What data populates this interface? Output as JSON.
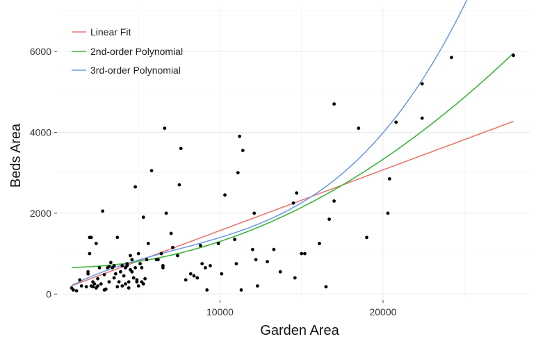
{
  "chart_data": {
    "type": "scatter",
    "title": "",
    "xlabel": "Garden Area",
    "ylabel": "Beds Area",
    "xlim": [
      0,
      29000
    ],
    "ylim": [
      -150,
      7100
    ],
    "x_ticks": [
      {
        "value": 10000,
        "label": "10000"
      },
      {
        "value": 20000,
        "label": "20000"
      }
    ],
    "y_ticks": [
      {
        "value": 0,
        "label": "0"
      },
      {
        "value": 2000,
        "label": "2000"
      },
      {
        "value": 4000,
        "label": "4000"
      },
      {
        "value": 6000,
        "label": "6000"
      }
    ],
    "grid": true,
    "legend_position": "top-left",
    "points": [
      [
        900,
        150
      ],
      [
        1000,
        100
      ],
      [
        1200,
        80
      ],
      [
        1400,
        350
      ],
      [
        1500,
        200
      ],
      [
        1800,
        180
      ],
      [
        1900,
        500
      ],
      [
        1900,
        550
      ],
      [
        2000,
        1000
      ],
      [
        2000,
        1400
      ],
      [
        2100,
        1400
      ],
      [
        2100,
        200
      ],
      [
        2200,
        180
      ],
      [
        2200,
        300
      ],
      [
        2300,
        250
      ],
      [
        2400,
        1250
      ],
      [
        2400,
        150
      ],
      [
        2500,
        380
      ],
      [
        2500,
        200
      ],
      [
        2600,
        650
      ],
      [
        2700,
        250
      ],
      [
        2800,
        2050
      ],
      [
        2900,
        480
      ],
      [
        2900,
        100
      ],
      [
        3000,
        120
      ],
      [
        3100,
        650
      ],
      [
        3200,
        300
      ],
      [
        3200,
        680
      ],
      [
        3300,
        780
      ],
      [
        3400,
        650
      ],
      [
        3500,
        400
      ],
      [
        3500,
        700
      ],
      [
        3600,
        500
      ],
      [
        3700,
        1400
      ],
      [
        3700,
        180
      ],
      [
        3800,
        300
      ],
      [
        3900,
        550
      ],
      [
        4000,
        200
      ],
      [
        4000,
        700
      ],
      [
        4100,
        450
      ],
      [
        4200,
        250
      ],
      [
        4200,
        650
      ],
      [
        4300,
        750
      ],
      [
        4300,
        700
      ],
      [
        4400,
        300
      ],
      [
        4400,
        150
      ],
      [
        4500,
        600
      ],
      [
        4500,
        950
      ],
      [
        4600,
        550
      ],
      [
        4600,
        850
      ],
      [
        4700,
        400
      ],
      [
        4800,
        2650
      ],
      [
        4800,
        650
      ],
      [
        4900,
        350
      ],
      [
        4900,
        300
      ],
      [
        5000,
        200
      ],
      [
        5000,
        1000
      ],
      [
        5100,
        750
      ],
      [
        5200,
        650
      ],
      [
        5200,
        300
      ],
      [
        5300,
        250
      ],
      [
        5300,
        1900
      ],
      [
        5400,
        380
      ],
      [
        5500,
        850
      ],
      [
        5600,
        1250
      ],
      [
        5800,
        3050
      ],
      [
        6100,
        850
      ],
      [
        6200,
        850
      ],
      [
        6400,
        1000
      ],
      [
        6500,
        700
      ],
      [
        6500,
        650
      ],
      [
        6600,
        4100
      ],
      [
        6700,
        2000
      ],
      [
        7000,
        1500
      ],
      [
        7100,
        1150
      ],
      [
        7400,
        950
      ],
      [
        7500,
        2700
      ],
      [
        7600,
        3600
      ],
      [
        7900,
        350
      ],
      [
        8200,
        500
      ],
      [
        8400,
        450
      ],
      [
        8600,
        400
      ],
      [
        8800,
        1200
      ],
      [
        8900,
        750
      ],
      [
        9100,
        650
      ],
      [
        9200,
        100
      ],
      [
        9400,
        700
      ],
      [
        9900,
        1250
      ],
      [
        10100,
        500
      ],
      [
        10300,
        2450
      ],
      [
        10900,
        1350
      ],
      [
        11000,
        750
      ],
      [
        11100,
        3000
      ],
      [
        11200,
        3900
      ],
      [
        11300,
        100
      ],
      [
        11400,
        3550
      ],
      [
        12000,
        1100
      ],
      [
        12100,
        2000
      ],
      [
        12200,
        850
      ],
      [
        12300,
        200
      ],
      [
        12900,
        800
      ],
      [
        13300,
        1100
      ],
      [
        13700,
        550
      ],
      [
        14500,
        2250
      ],
      [
        14600,
        400
      ],
      [
        14700,
        2500
      ],
      [
        15000,
        1000
      ],
      [
        15200,
        1000
      ],
      [
        16100,
        1250
      ],
      [
        16500,
        180
      ],
      [
        16700,
        1850
      ],
      [
        17000,
        4700
      ],
      [
        17000,
        2300
      ],
      [
        18500,
        4100
      ],
      [
        19000,
        1400
      ],
      [
        20300,
        2000
      ],
      [
        20400,
        2850
      ],
      [
        20800,
        4250
      ],
      [
        22400,
        5200
      ],
      [
        22400,
        4350
      ],
      [
        24200,
        5850
      ],
      [
        28000,
        5900
      ]
    ],
    "series": [
      {
        "name": "Linear Fit",
        "color": "#e8776f",
        "kind": "poly",
        "coeffs": [
          70,
          0.15
        ]
      },
      {
        "name": "2nd-order Polynomial",
        "color": "#3ab53a",
        "kind": "poly",
        "coeffs": [
          658,
          -0.0053,
          6.95e-06
        ]
      },
      {
        "name": "3rd-order Polynomial",
        "color": "#6f9ce8",
        "kind": "poly",
        "coeffs": [
          20,
          0.2286,
          -1.665e-05,
          7.57e-10
        ]
      }
    ],
    "fit_range": [
      900,
      28000
    ]
  },
  "colors": {
    "panel_background": "#ffffff",
    "grid_major": "#ebebeb",
    "grid_minor": "#f5f5f5",
    "points": "#000000"
  }
}
